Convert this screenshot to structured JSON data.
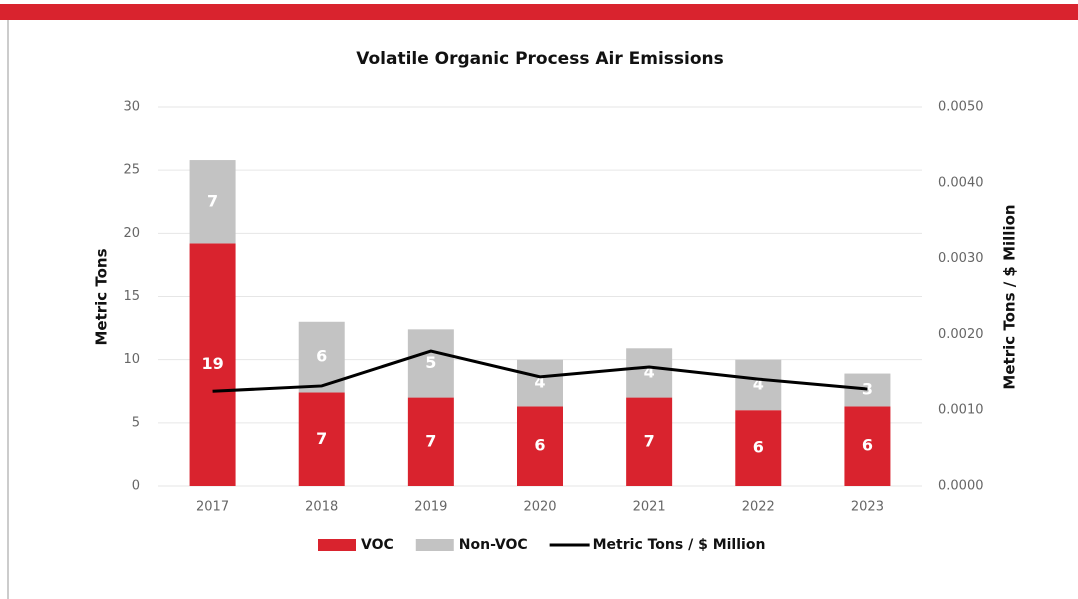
{
  "chart_data": {
    "type": "bar",
    "stacked": true,
    "title": "Volatile Organic Process Air Emissions",
    "ylabel": "Metric Tons",
    "y2label": "Metric Tons / $ Million",
    "categories": [
      "2017",
      "2018",
      "2019",
      "2020",
      "2021",
      "2022",
      "2023"
    ],
    "series": [
      {
        "name": "VOC",
        "color": "#d9232e",
        "values": [
          19.2,
          7.4,
          7.0,
          6.3,
          7.0,
          6.0,
          6.3
        ],
        "value_labels": [
          "19",
          "7",
          "7",
          "6",
          "7",
          "6",
          "6"
        ]
      },
      {
        "name": "Non-VOC",
        "color": "#c3c3c3",
        "values": [
          6.6,
          5.6,
          5.4,
          3.7,
          3.9,
          4.0,
          2.6
        ],
        "value_labels": [
          "7",
          "6",
          "5",
          "4",
          "4",
          "4",
          "3"
        ]
      },
      {
        "name": "Metric Tons / $ Million",
        "type": "line",
        "axis": "y2",
        "color": "#000000",
        "values": [
          0.00125,
          0.00132,
          0.00178,
          0.00144,
          0.00157,
          0.00141,
          0.00128
        ]
      }
    ],
    "ylim": [
      0,
      30
    ],
    "yticks": [
      0,
      5,
      10,
      15,
      20,
      25,
      30
    ],
    "y2lim": [
      0,
      0.005
    ],
    "y2ticks": [
      {
        "value": 0,
        "label": "0.0000"
      },
      {
        "value": 0.001,
        "label": "0.0010"
      },
      {
        "value": 0.002,
        "label": "0.0020"
      },
      {
        "value": 0.003,
        "label": "0.0030"
      },
      {
        "value": 0.004,
        "label": "0.0040"
      },
      {
        "value": 0.005,
        "label": "0.0050"
      }
    ],
    "grid": true,
    "legend": "bottom"
  }
}
